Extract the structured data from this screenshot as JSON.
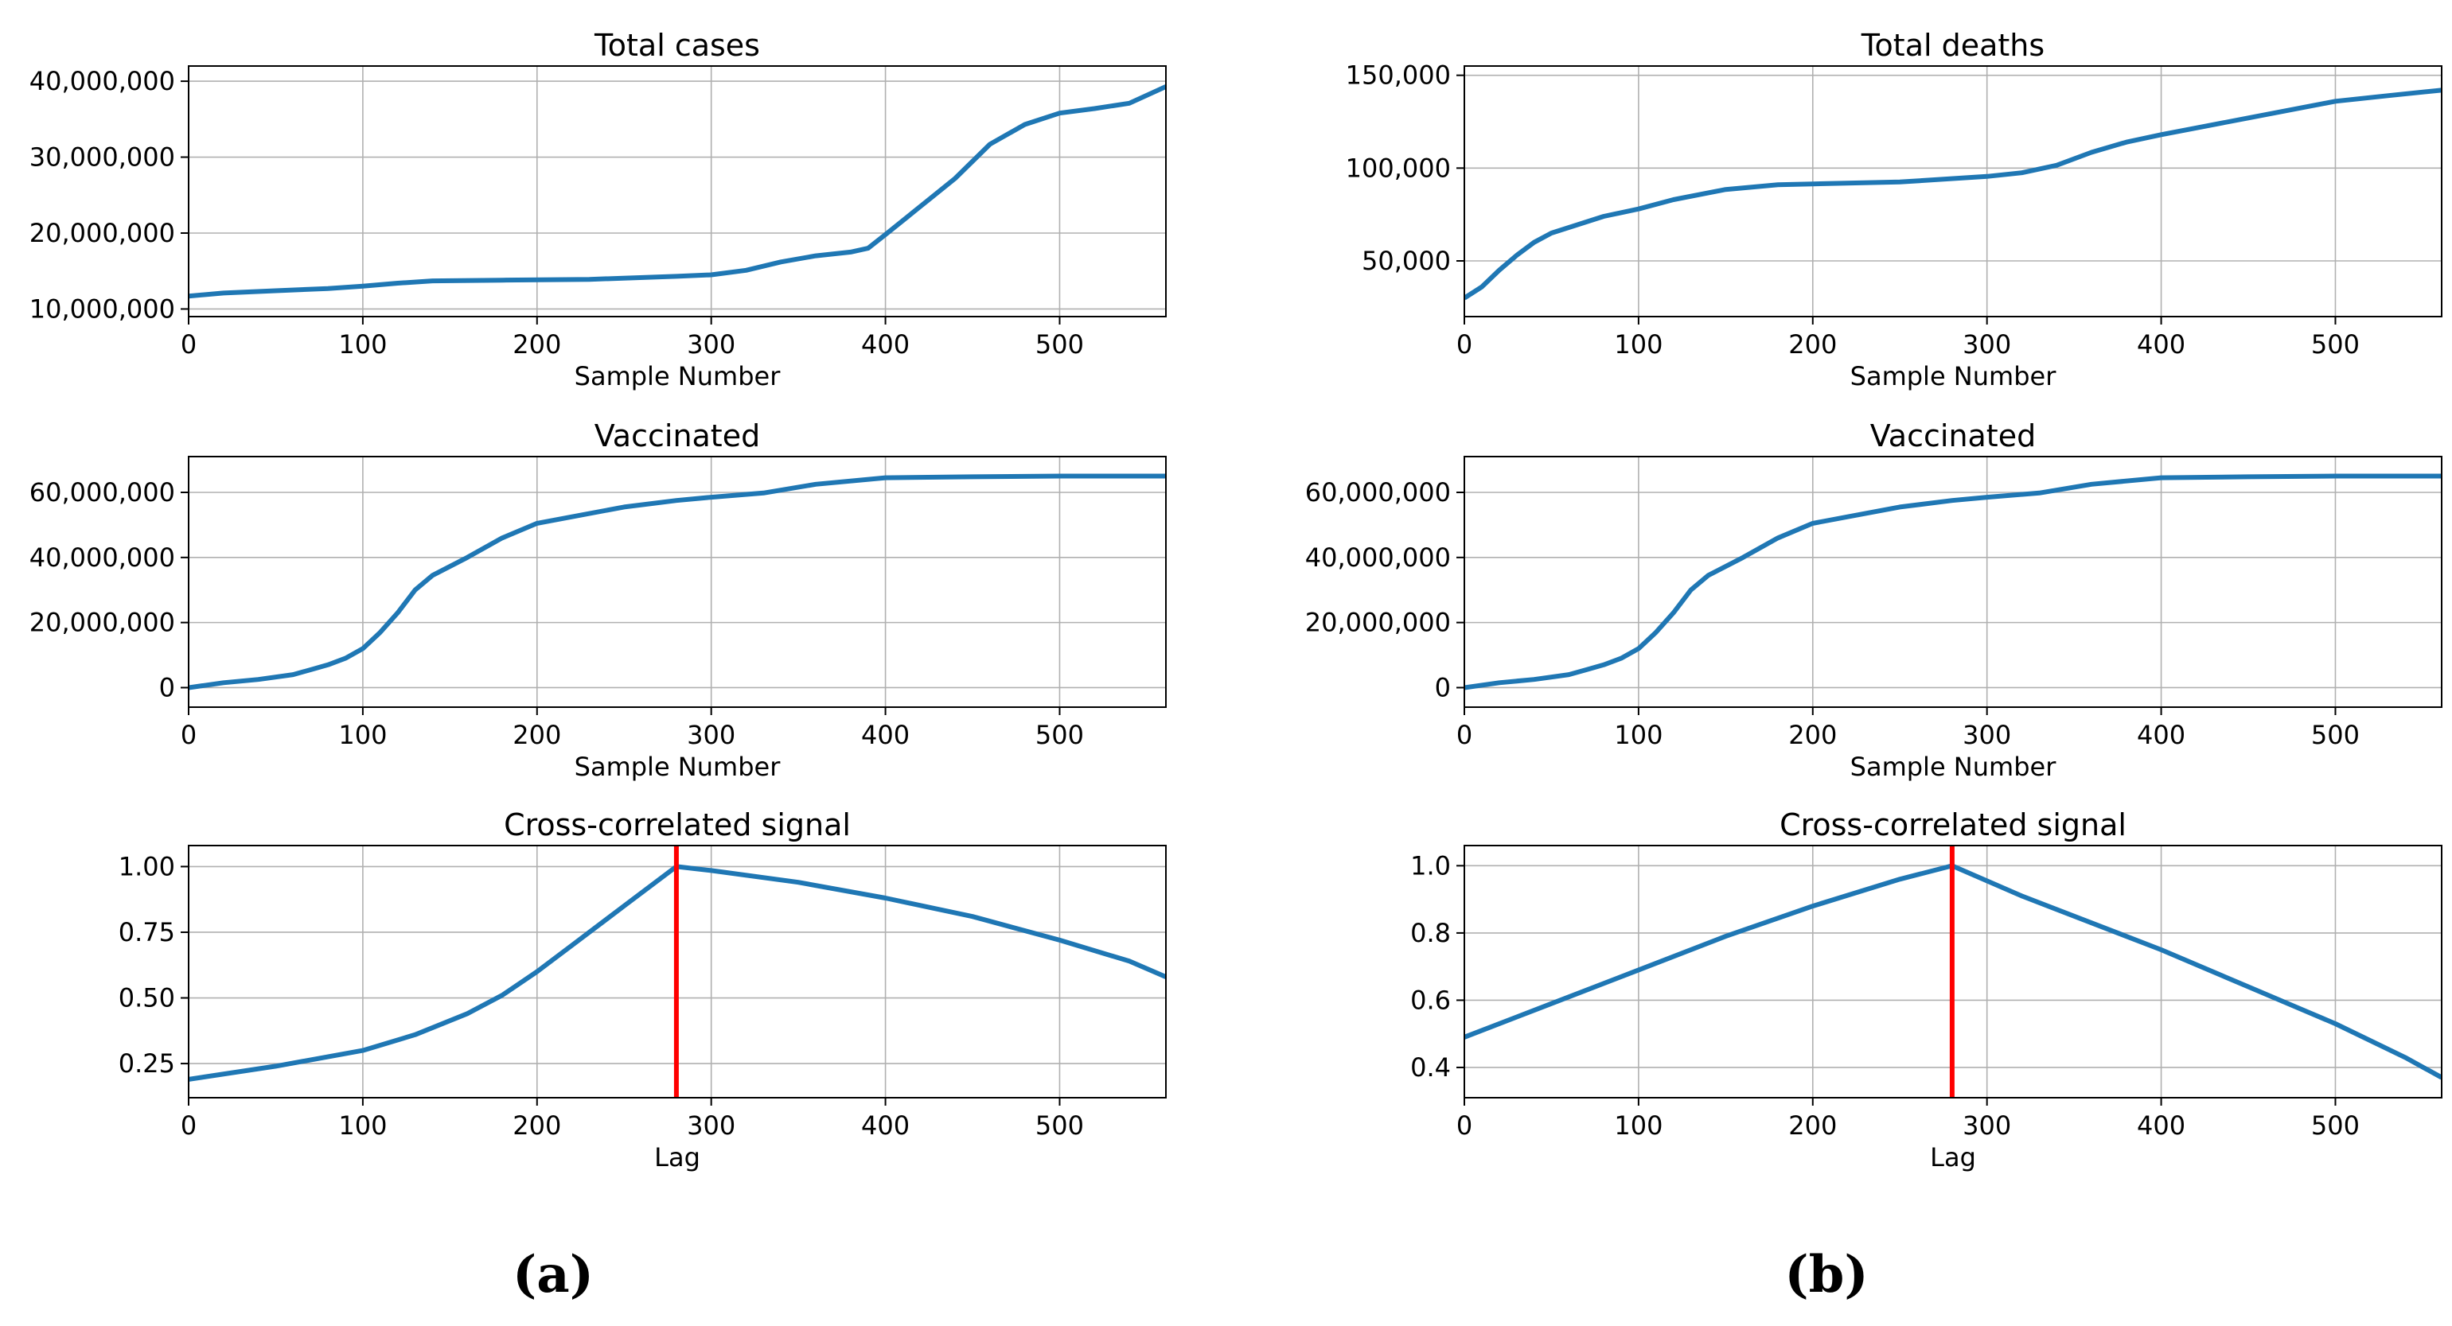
{
  "figure": {
    "panel_labels": [
      "(a)",
      "(b)"
    ]
  },
  "chart_data": [
    {
      "id": "a1",
      "type": "line",
      "title": "Total cases",
      "xlabel": "Sample Number",
      "ylabel": "",
      "xlim": [
        0,
        561
      ],
      "ylim": [
        9000000,
        42000000
      ],
      "xticks": [
        0,
        100,
        200,
        300,
        400,
        500
      ],
      "yticks": [
        10000000,
        20000000,
        30000000,
        40000000
      ],
      "ytick_labels": [
        "10,000,000",
        "20,000,000",
        "30,000,000",
        "40,000,000"
      ],
      "grid": true,
      "series": [
        {
          "name": "Total cases",
          "color": "#1f77b4",
          "x": [
            0,
            20,
            50,
            80,
            100,
            120,
            140,
            180,
            230,
            280,
            300,
            320,
            340,
            360,
            380,
            390,
            400,
            420,
            440,
            460,
            480,
            500,
            520,
            540,
            561
          ],
          "y": [
            11700000,
            12100000,
            12400000,
            12700000,
            13000000,
            13400000,
            13700000,
            13800000,
            13900000,
            14300000,
            14500000,
            15100000,
            16200000,
            17000000,
            17500000,
            18000000,
            19800000,
            23500000,
            27200000,
            31700000,
            34300000,
            35800000,
            36400000,
            37100000,
            39300000
          ]
        }
      ]
    },
    {
      "id": "a2",
      "type": "line",
      "title": "Vaccinated",
      "xlabel": "Sample Number",
      "ylabel": "",
      "xlim": [
        0,
        561
      ],
      "ylim": [
        -6000000,
        71000000
      ],
      "xticks": [
        0,
        100,
        200,
        300,
        400,
        500
      ],
      "yticks": [
        0,
        20000000,
        40000000,
        60000000
      ],
      "ytick_labels": [
        "0",
        "20,000,000",
        "40,000,000",
        "60,000,000"
      ],
      "grid": true,
      "series": [
        {
          "name": "Vaccinated",
          "color": "#1f77b4",
          "x": [
            0,
            20,
            40,
            60,
            70,
            80,
            90,
            100,
            110,
            120,
            130,
            140,
            160,
            180,
            200,
            220,
            250,
            280,
            300,
            330,
            360,
            400,
            450,
            500,
            561
          ],
          "y": [
            0,
            1500000,
            2500000,
            4000000,
            5500000,
            7000000,
            9000000,
            12000000,
            17000000,
            23000000,
            30000000,
            34500000,
            40000000,
            46000000,
            50500000,
            52500000,
            55500000,
            57500000,
            58500000,
            59800000,
            62500000,
            64500000,
            64800000,
            65000000,
            65000000
          ]
        }
      ]
    },
    {
      "id": "a3",
      "type": "line",
      "title": "Cross-correlated signal",
      "xlabel": "Lag",
      "ylabel": "",
      "xlim": [
        0,
        561
      ],
      "ylim": [
        0.12,
        1.08
      ],
      "xticks": [
        0,
        100,
        200,
        300,
        400,
        500
      ],
      "yticks": [
        0.25,
        0.5,
        0.75,
        1.0
      ],
      "ytick_labels": [
        "0.25",
        "0.50",
        "0.75",
        "1.00"
      ],
      "grid": true,
      "vline": {
        "x": 280,
        "color": "#ff0000"
      },
      "series": [
        {
          "name": "Cross-correlation",
          "color": "#1f77b4",
          "x": [
            0,
            50,
            100,
            130,
            160,
            180,
            200,
            220,
            250,
            280,
            300,
            350,
            400,
            450,
            500,
            540,
            561
          ],
          "y": [
            0.19,
            0.24,
            0.3,
            0.36,
            0.44,
            0.51,
            0.6,
            0.7,
            0.85,
            1.0,
            0.985,
            0.94,
            0.88,
            0.81,
            0.72,
            0.64,
            0.58
          ]
        }
      ]
    },
    {
      "id": "b1",
      "type": "line",
      "title": "Total deaths",
      "xlabel": "Sample Number",
      "ylabel": "",
      "xlim": [
        0,
        561
      ],
      "ylim": [
        20000,
        155000
      ],
      "xticks": [
        0,
        100,
        200,
        300,
        400,
        500
      ],
      "yticks": [
        50000,
        100000,
        150000
      ],
      "ytick_labels": [
        "50,000",
        "100,000",
        "150,000"
      ],
      "grid": true,
      "series": [
        {
          "name": "Total deaths",
          "color": "#1f77b4",
          "x": [
            0,
            10,
            20,
            30,
            40,
            50,
            60,
            80,
            100,
            120,
            150,
            180,
            200,
            250,
            300,
            320,
            340,
            360,
            380,
            400,
            450,
            500,
            530,
            561
          ],
          "y": [
            30000,
            36000,
            45000,
            53000,
            60000,
            65000,
            68000,
            74000,
            78000,
            83000,
            88500,
            91000,
            91500,
            92500,
            95500,
            97500,
            101500,
            108500,
            114000,
            118000,
            127000,
            136000,
            139000,
            142000
          ]
        }
      ]
    },
    {
      "id": "b2",
      "type": "line",
      "title": "Vaccinated",
      "xlabel": "Sample Number",
      "ylabel": "",
      "xlim": [
        0,
        561
      ],
      "ylim": [
        -6000000,
        71000000
      ],
      "xticks": [
        0,
        100,
        200,
        300,
        400,
        500
      ],
      "yticks": [
        0,
        20000000,
        40000000,
        60000000
      ],
      "ytick_labels": [
        "0",
        "20,000,000",
        "40,000,000",
        "60,000,000"
      ],
      "grid": true,
      "series": [
        {
          "name": "Vaccinated",
          "color": "#1f77b4",
          "x": [
            0,
            20,
            40,
            60,
            70,
            80,
            90,
            100,
            110,
            120,
            130,
            140,
            160,
            180,
            200,
            220,
            250,
            280,
            300,
            330,
            360,
            400,
            450,
            500,
            561
          ],
          "y": [
            0,
            1500000,
            2500000,
            4000000,
            5500000,
            7000000,
            9000000,
            12000000,
            17000000,
            23000000,
            30000000,
            34500000,
            40000000,
            46000000,
            50500000,
            52500000,
            55500000,
            57500000,
            58500000,
            59800000,
            62500000,
            64500000,
            64800000,
            65000000,
            65000000
          ]
        }
      ]
    },
    {
      "id": "b3",
      "type": "line",
      "title": "Cross-correlated signal",
      "xlabel": "Lag",
      "ylabel": "",
      "xlim": [
        0,
        561
      ],
      "ylim": [
        0.31,
        1.06
      ],
      "xticks": [
        0,
        100,
        200,
        300,
        400,
        500
      ],
      "yticks": [
        0.4,
        0.6,
        0.8,
        1.0
      ],
      "ytick_labels": [
        "0.4",
        "0.6",
        "0.8",
        "1.0"
      ],
      "grid": true,
      "vline": {
        "x": 280,
        "color": "#ff0000"
      },
      "series": [
        {
          "name": "Cross-correlation",
          "color": "#1f77b4",
          "x": [
            0,
            50,
            100,
            150,
            200,
            250,
            280,
            320,
            360,
            400,
            450,
            500,
            540,
            561
          ],
          "y": [
            0.49,
            0.59,
            0.69,
            0.79,
            0.88,
            0.96,
            1.0,
            0.91,
            0.83,
            0.75,
            0.64,
            0.53,
            0.43,
            0.37
          ]
        }
      ]
    }
  ]
}
